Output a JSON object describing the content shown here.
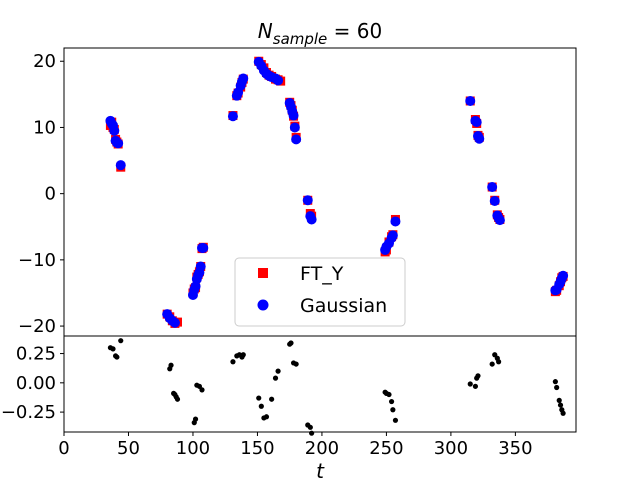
{
  "chart_data": [
    {
      "type": "scatter",
      "title": "N_sample = 60",
      "title_main": "N",
      "title_sub": "sample",
      "title_rest": " = 60",
      "ylabel": "",
      "xlim": [
        0,
        397
      ],
      "ylim": [
        -21.5,
        22
      ],
      "yticks": [
        -20,
        -10,
        0,
        10,
        20
      ],
      "yticklabels": [
        "−20",
        "−10",
        "0",
        "10",
        "20"
      ],
      "grid": false,
      "legend_position": "lower-center",
      "series": [
        {
          "name": "FT_Y",
          "marker": "square",
          "color": "#ff0000",
          "points": [
            [
              36,
              10.3
            ],
            [
              37,
              10.8
            ],
            [
              38,
              10.0
            ],
            [
              39,
              9.7
            ],
            [
              40,
              8.2
            ],
            [
              41,
              7.8
            ],
            [
              42,
              7.5
            ],
            [
              44,
              4.0
            ],
            [
              80,
              -18.2
            ],
            [
              82,
              -18.6
            ],
            [
              84,
              -19.2
            ],
            [
              86,
              -19.6
            ],
            [
              88,
              -19.4
            ],
            [
              100,
              -15.0
            ],
            [
              101,
              -14.4
            ],
            [
              102,
              -14.2
            ],
            [
              103,
              -12.6
            ],
            [
              104,
              -12.2
            ],
            [
              105,
              -11.8
            ],
            [
              106,
              -11.0
            ],
            [
              107,
              -8.3
            ],
            [
              108,
              -8.1
            ],
            [
              131,
              11.8
            ],
            [
              134,
              14.8
            ],
            [
              135,
              15.2
            ],
            [
              137,
              16.1
            ],
            [
              138,
              16.8
            ],
            [
              139,
              17.3
            ],
            [
              151,
              20.0
            ],
            [
              153,
              19.5
            ],
            [
              155,
              19.0
            ],
            [
              157,
              18.3
            ],
            [
              159,
              17.9
            ],
            [
              161,
              17.7
            ],
            [
              164,
              17.3
            ],
            [
              166,
              17.2
            ],
            [
              168,
              17.0
            ],
            [
              175,
              13.8
            ],
            [
              176,
              13.3
            ],
            [
              177,
              12.6
            ],
            [
              178,
              11.7
            ],
            [
              179,
              10.2
            ],
            [
              180,
              8.5
            ],
            [
              189,
              -1.0
            ],
            [
              191,
              -3.0
            ],
            [
              192,
              -3.4
            ],
            [
              249,
              -8.8
            ],
            [
              250,
              -8.5
            ],
            [
              252,
              -7.3
            ],
            [
              254,
              -6.5
            ],
            [
              255,
              -6.2
            ],
            [
              257,
              -3.9
            ],
            [
              315,
              14.0
            ],
            [
              319,
              11.2
            ],
            [
              320,
              10.6
            ],
            [
              321,
              8.8
            ],
            [
              322,
              8.5
            ],
            [
              332,
              1.0
            ],
            [
              334,
              -1.0
            ],
            [
              336,
              -3.2
            ],
            [
              337,
              -3.6
            ],
            [
              338,
              -3.9
            ],
            [
              381,
              -14.8
            ],
            [
              382,
              -14.6
            ],
            [
              384,
              -13.9
            ],
            [
              385,
              -13.3
            ],
            [
              386,
              -12.7
            ],
            [
              387,
              -12.5
            ]
          ]
        },
        {
          "name": "Gaussian",
          "marker": "circle",
          "color": "#0000ff",
          "points": [
            [
              36,
              11.0
            ],
            [
              37,
              10.6
            ],
            [
              38,
              10.3
            ],
            [
              39,
              9.5
            ],
            [
              40,
              8.0
            ],
            [
              41,
              7.7
            ],
            [
              42,
              7.6
            ],
            [
              44,
              4.3
            ],
            [
              80,
              -18.2
            ],
            [
              82,
              -18.8
            ],
            [
              84,
              -19.2
            ],
            [
              86,
              -19.5
            ],
            [
              100,
              -15.3
            ],
            [
              101,
              -14.5
            ],
            [
              102,
              -14.0
            ],
            [
              103,
              -12.9
            ],
            [
              104,
              -12.3
            ],
            [
              105,
              -11.9
            ],
            [
              106,
              -11.0
            ],
            [
              107,
              -8.2
            ],
            [
              108,
              -8.2
            ],
            [
              131,
              11.7
            ],
            [
              134,
              14.8
            ],
            [
              135,
              15.3
            ],
            [
              137,
              16.3
            ],
            [
              138,
              16.9
            ],
            [
              139,
              17.4
            ],
            [
              151,
              19.9
            ],
            [
              153,
              19.3
            ],
            [
              155,
              18.6
            ],
            [
              157,
              18.1
            ],
            [
              159,
              17.8
            ],
            [
              161,
              17.6
            ],
            [
              164,
              17.4
            ],
            [
              166,
              17.1
            ],
            [
              175,
              13.7
            ],
            [
              176,
              13.1
            ],
            [
              177,
              12.4
            ],
            [
              178,
              11.8
            ],
            [
              179,
              10.0
            ],
            [
              180,
              8.2
            ],
            [
              189,
              -1.0
            ],
            [
              191,
              -3.4
            ],
            [
              192,
              -3.9
            ],
            [
              249,
              -8.5
            ],
            [
              250,
              -8.0
            ],
            [
              252,
              -7.5
            ],
            [
              254,
              -6.7
            ],
            [
              255,
              -6.3
            ],
            [
              257,
              -4.2
            ],
            [
              315,
              14.0
            ],
            [
              319,
              11.0
            ],
            [
              320,
              10.8
            ],
            [
              321,
              8.7
            ],
            [
              322,
              8.3
            ],
            [
              332,
              1.0
            ],
            [
              334,
              -1.1
            ],
            [
              336,
              -3.3
            ],
            [
              337,
              -3.7
            ],
            [
              338,
              -4.0
            ],
            [
              381,
              -14.6
            ],
            [
              382,
              -14.5
            ],
            [
              384,
              -13.7
            ],
            [
              385,
              -13.3
            ],
            [
              386,
              -12.8
            ],
            [
              387,
              -12.4
            ]
          ]
        }
      ]
    },
    {
      "type": "scatter",
      "xlabel": "t",
      "ylabel": "",
      "xlim": [
        0,
        397
      ],
      "ylim": [
        -0.42,
        0.4
      ],
      "xticks": [
        0,
        50,
        100,
        150,
        200,
        250,
        300,
        350
      ],
      "xticklabels": [
        "0",
        "50",
        "100",
        "150",
        "200",
        "250",
        "300",
        "350"
      ],
      "yticks": [
        -0.25,
        0.0,
        0.25
      ],
      "yticklabels": [
        "−0.25",
        "0.00",
        "0.25"
      ],
      "grid": false,
      "series": [
        {
          "marker": "dot",
          "color": "#000000",
          "points": [
            [
              36,
              0.3
            ],
            [
              38,
              0.29
            ],
            [
              40,
              0.23
            ],
            [
              41,
              0.22
            ],
            [
              44,
              0.36
            ],
            [
              82,
              0.12
            ],
            [
              83,
              0.15
            ],
            [
              85,
              -0.09
            ],
            [
              86,
              -0.1
            ],
            [
              87,
              -0.12
            ],
            [
              88,
              -0.14
            ],
            [
              101,
              -0.34
            ],
            [
              102,
              -0.31
            ],
            [
              103,
              -0.02
            ],
            [
              105,
              -0.03
            ],
            [
              107,
              -0.06
            ],
            [
              131,
              0.18
            ],
            [
              134,
              0.23
            ],
            [
              136,
              0.24
            ],
            [
              138,
              0.22
            ],
            [
              139,
              0.24
            ],
            [
              151,
              -0.13
            ],
            [
              153,
              -0.2
            ],
            [
              155,
              -0.3
            ],
            [
              157,
              -0.29
            ],
            [
              161,
              -0.14
            ],
            [
              164,
              0.04
            ],
            [
              166,
              0.1
            ],
            [
              175,
              0.33
            ],
            [
              176,
              0.34
            ],
            [
              178,
              0.17
            ],
            [
              180,
              0.16
            ],
            [
              189,
              -0.36
            ],
            [
              191,
              -0.38
            ],
            [
              192,
              -0.43
            ],
            [
              249,
              -0.08
            ],
            [
              250,
              -0.09
            ],
            [
              252,
              -0.1
            ],
            [
              254,
              -0.16
            ],
            [
              255,
              -0.23
            ],
            [
              257,
              -0.32
            ],
            [
              315,
              -0.01
            ],
            [
              319,
              -0.03
            ],
            [
              320,
              0.04
            ],
            [
              321,
              0.06
            ],
            [
              332,
              0.16
            ],
            [
              334,
              0.24
            ],
            [
              336,
              0.21
            ],
            [
              337,
              0.18
            ],
            [
              381,
              0.01
            ],
            [
              382,
              -0.04
            ],
            [
              384,
              -0.15
            ],
            [
              385,
              -0.19
            ],
            [
              386,
              -0.23
            ],
            [
              387,
              -0.26
            ]
          ]
        }
      ]
    }
  ]
}
